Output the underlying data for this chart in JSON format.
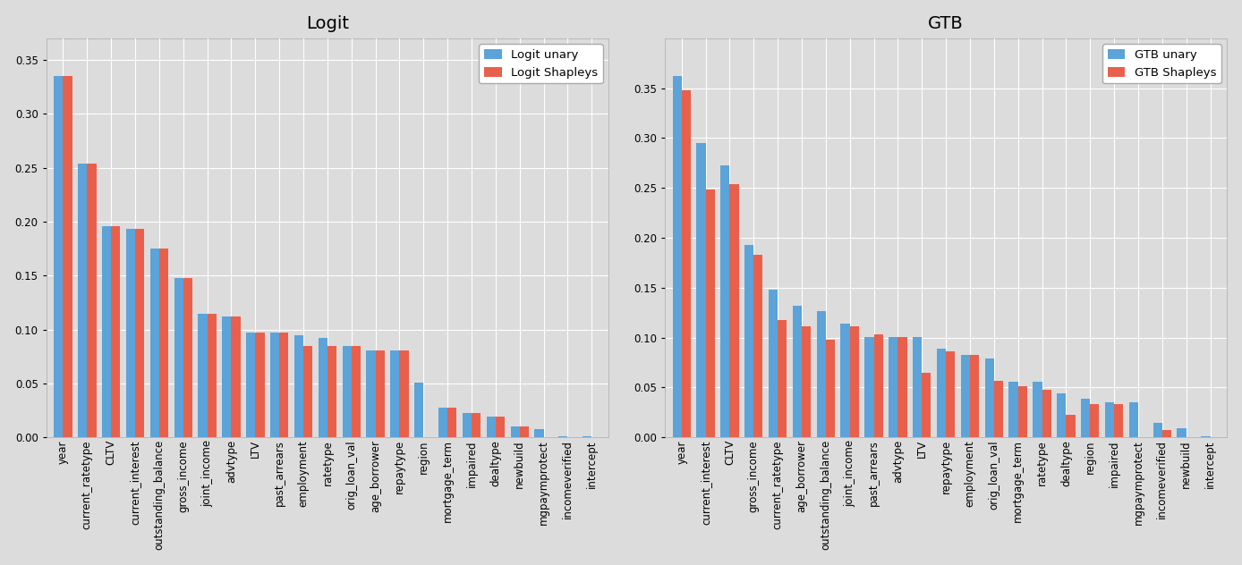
{
  "logit_categories": [
    "year",
    "current_ratetype",
    "CLTV",
    "current_interest",
    "outstanding_balance",
    "gross_income",
    "joint_income",
    "advtype",
    "LTV",
    "past_arrears",
    "employment",
    "ratetype",
    "orig_loan_val",
    "age_borrower",
    "repaytype",
    "region",
    "mortgage_term",
    "impaired",
    "dealtype",
    "newbuild",
    "mgpaymprotect",
    "incomeverified",
    "intercept"
  ],
  "logit_unary": [
    0.335,
    0.254,
    0.196,
    0.193,
    0.175,
    0.148,
    0.115,
    0.112,
    0.097,
    0.097,
    0.095,
    0.092,
    0.085,
    0.081,
    0.081,
    0.051,
    0.028,
    0.023,
    0.019,
    0.01,
    0.008,
    0.001,
    0.001
  ],
  "logit_shapleys": [
    0.335,
    0.254,
    0.196,
    0.193,
    0.175,
    0.148,
    0.115,
    0.112,
    0.097,
    0.097,
    0.085,
    0.085,
    0.085,
    0.081,
    0.081,
    0.0,
    0.028,
    0.023,
    0.019,
    0.01,
    0.0,
    0.0,
    0.0
  ],
  "gtb_categories": [
    "year",
    "current_interest",
    "CLTV",
    "gross_income",
    "current_ratetype",
    "age_borrower",
    "outstanding_balance",
    "joint_income",
    "past_arrears",
    "advtype",
    "LTV",
    "repaytype",
    "employment",
    "orig_loan_val",
    "mortgage_term",
    "ratetype",
    "dealtype",
    "region",
    "impaired",
    "mgpaymprotect",
    "incomeverified",
    "newbuild",
    "intercept"
  ],
  "gtb_unary": [
    0.362,
    0.295,
    0.273,
    0.193,
    0.148,
    0.132,
    0.127,
    0.114,
    0.101,
    0.101,
    0.101,
    0.089,
    0.083,
    0.079,
    0.056,
    0.056,
    0.044,
    0.039,
    0.035,
    0.035,
    0.015,
    0.009,
    0.001
  ],
  "gtb_shapleys": [
    0.348,
    0.248,
    0.254,
    0.183,
    0.118,
    0.111,
    0.098,
    0.111,
    0.103,
    0.101,
    0.065,
    0.086,
    0.083,
    0.057,
    0.051,
    0.048,
    0.023,
    0.033,
    0.033,
    0.0,
    0.007,
    0.0,
    0.0
  ],
  "unary_color": "#5BA3D9",
  "shapley_color": "#E8604C",
  "bg_color": "#DCDCDC",
  "plot_bg_color": "#DCDCDC",
  "fig_bg_color": "#DCDCDC",
  "grid_color": "white",
  "title_fontsize": 14,
  "tick_fontsize": 8.5,
  "legend_fontsize": 9.5,
  "bar_width": 0.38,
  "logit_ylim": [
    0.0,
    0.37
  ],
  "gtb_ylim": [
    0.0,
    0.4
  ],
  "logit_yticks": [
    0.0,
    0.05,
    0.1,
    0.15,
    0.2,
    0.25,
    0.3,
    0.35
  ],
  "gtb_yticks": [
    0.0,
    0.05,
    0.1,
    0.15,
    0.2,
    0.25,
    0.3,
    0.35
  ]
}
